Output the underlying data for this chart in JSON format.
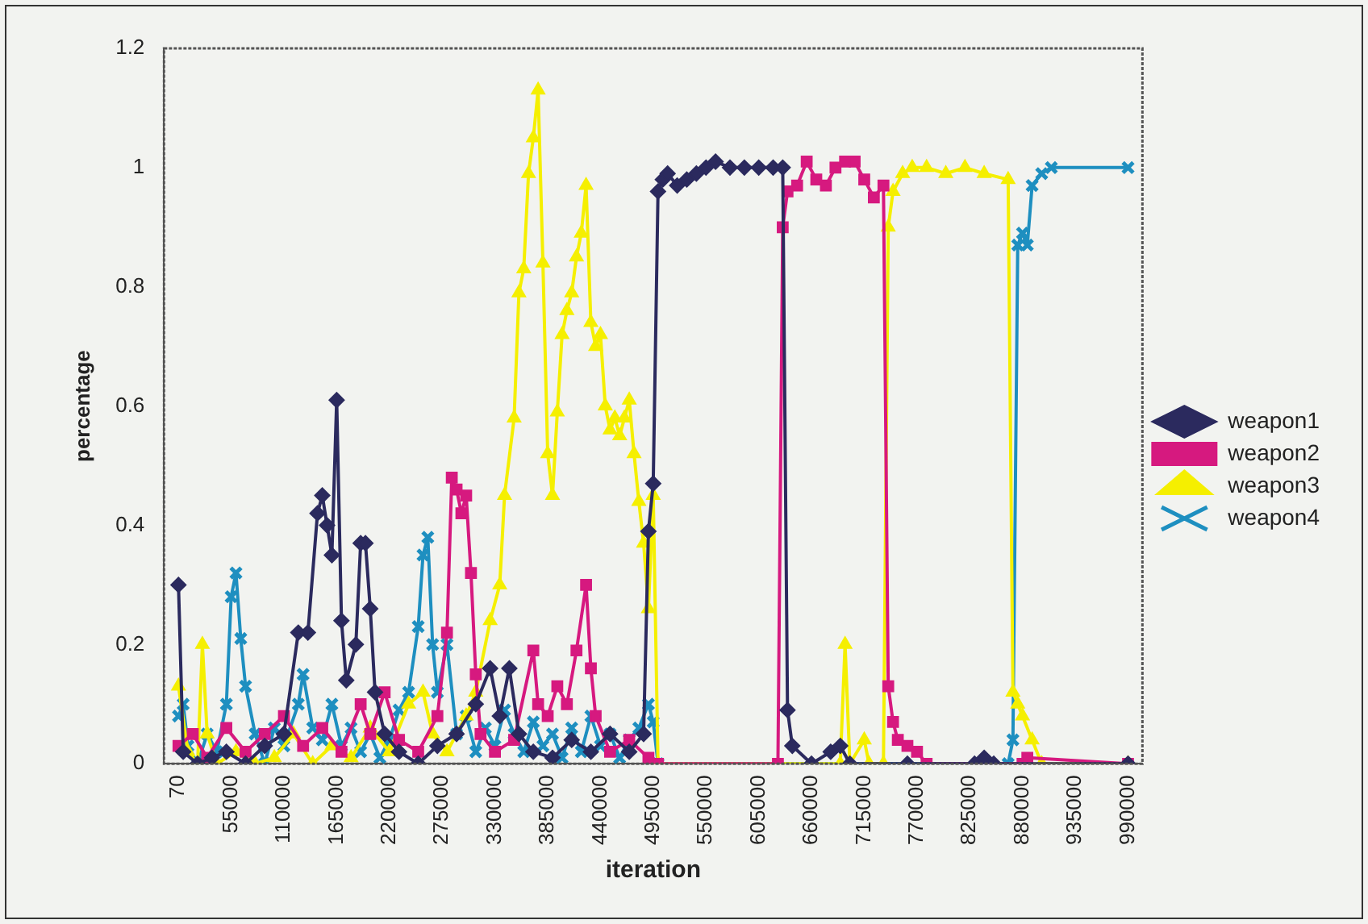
{
  "chart_data": {
    "type": "line",
    "xlabel": "iteration",
    "ylabel": "percentage",
    "xlim": [
      -15000,
      1005000
    ],
    "ylim": [
      0,
      1.2
    ],
    "xticks": [
      70,
      55000,
      110000,
      165000,
      220000,
      275000,
      330000,
      385000,
      440000,
      495000,
      550000,
      605000,
      660000,
      715000,
      770000,
      825000,
      880000,
      935000,
      990000
    ],
    "yticks": [
      0,
      0.2,
      0.4,
      0.6,
      0.8,
      1,
      1.2
    ],
    "grid": false,
    "legend": "right",
    "line_style": "solid",
    "series": [
      {
        "name": "weapon1",
        "color": "#2b2a5e",
        "marker": "diamond",
        "x": [
          70,
          5000,
          20000,
          35000,
          50000,
          70000,
          90000,
          110000,
          125000,
          135000,
          145000,
          150000,
          155000,
          160000,
          165000,
          170000,
          175000,
          185000,
          190000,
          195000,
          200000,
          205000,
          215000,
          230000,
          250000,
          270000,
          290000,
          310000,
          325000,
          335000,
          345000,
          355000,
          370000,
          390000,
          410000,
          430000,
          450000,
          470000,
          485000,
          490000,
          495000,
          500000,
          505000,
          510000,
          520000,
          530000,
          540000,
          550000,
          560000,
          575000,
          590000,
          605000,
          620000,
          630000,
          635000,
          640000,
          660000,
          680000,
          690000,
          700000,
          760000,
          830000,
          840000,
          850000,
          990000
        ],
        "values": [
          0.3,
          0.02,
          0.0,
          0.01,
          0.02,
          0.0,
          0.03,
          0.05,
          0.22,
          0.22,
          0.42,
          0.45,
          0.4,
          0.35,
          0.61,
          0.24,
          0.14,
          0.2,
          0.37,
          0.37,
          0.26,
          0.12,
          0.05,
          0.02,
          0.0,
          0.03,
          0.05,
          0.1,
          0.16,
          0.08,
          0.16,
          0.05,
          0.02,
          0.01,
          0.04,
          0.02,
          0.05,
          0.02,
          0.05,
          0.39,
          0.47,
          0.96,
          0.98,
          0.99,
          0.97,
          0.98,
          0.99,
          1.0,
          1.01,
          1.0,
          1.0,
          1.0,
          1.0,
          1.0,
          0.09,
          0.03,
          0.0,
          0.02,
          0.03,
          0.0,
          0.0,
          0.0,
          0.01,
          0.0,
          0.0
        ]
      },
      {
        "name": "weapon2",
        "color": "#d6197f",
        "marker": "square",
        "x": [
          70,
          15000,
          30000,
          50000,
          70000,
          90000,
          110000,
          130000,
          150000,
          170000,
          190000,
          200000,
          215000,
          230000,
          250000,
          270000,
          280000,
          285000,
          290000,
          295000,
          300000,
          305000,
          310000,
          315000,
          330000,
          350000,
          370000,
          375000,
          385000,
          395000,
          405000,
          415000,
          425000,
          430000,
          435000,
          450000,
          470000,
          490000,
          500000,
          625000,
          630000,
          635000,
          645000,
          655000,
          665000,
          675000,
          685000,
          695000,
          705000,
          715000,
          725000,
          735000,
          740000,
          745000,
          750000,
          760000,
          770000,
          780000,
          880000,
          885000,
          990000
        ],
        "values": [
          0.03,
          0.05,
          0.01,
          0.06,
          0.02,
          0.05,
          0.08,
          0.03,
          0.06,
          0.02,
          0.1,
          0.05,
          0.12,
          0.04,
          0.02,
          0.08,
          0.22,
          0.48,
          0.46,
          0.42,
          0.45,
          0.32,
          0.15,
          0.05,
          0.02,
          0.04,
          0.19,
          0.1,
          0.08,
          0.13,
          0.1,
          0.19,
          0.3,
          0.16,
          0.08,
          0.02,
          0.04,
          0.01,
          0.0,
          0.0,
          0.9,
          0.96,
          0.97,
          1.01,
          0.98,
          0.97,
          1.0,
          1.01,
          1.01,
          0.98,
          0.95,
          0.97,
          0.13,
          0.07,
          0.04,
          0.03,
          0.02,
          0.0,
          0.0,
          0.01,
          0.0
        ]
      },
      {
        "name": "weapon3",
        "color": "#f5ef00",
        "marker": "triangle",
        "x": [
          70,
          10000,
          20000,
          25000,
          30000,
          40000,
          60000,
          80000,
          100000,
          120000,
          140000,
          160000,
          180000,
          200000,
          220000,
          240000,
          255000,
          265000,
          280000,
          300000,
          310000,
          325000,
          335000,
          340000,
          350000,
          355000,
          360000,
          365000,
          370000,
          375000,
          380000,
          385000,
          390000,
          395000,
          400000,
          405000,
          410000,
          415000,
          420000,
          425000,
          430000,
          435000,
          440000,
          445000,
          450000,
          455000,
          460000,
          465000,
          470000,
          475000,
          480000,
          485000,
          490000,
          495000,
          500000,
          690000,
          695000,
          700000,
          715000,
          720000,
          735000,
          740000,
          745000,
          755000,
          765000,
          780000,
          800000,
          820000,
          840000,
          865000,
          870000,
          875000,
          880000,
          890000,
          900000,
          990000
        ],
        "values": [
          0.13,
          0.02,
          0.0,
          0.2,
          0.05,
          0.0,
          0.02,
          0.0,
          0.01,
          0.05,
          0.0,
          0.03,
          0.01,
          0.06,
          0.02,
          0.1,
          0.12,
          0.05,
          0.02,
          0.08,
          0.12,
          0.24,
          0.3,
          0.45,
          0.58,
          0.79,
          0.83,
          0.99,
          1.05,
          1.13,
          0.84,
          0.52,
          0.45,
          0.59,
          0.72,
          0.76,
          0.79,
          0.85,
          0.89,
          0.97,
          0.74,
          0.7,
          0.72,
          0.6,
          0.56,
          0.58,
          0.55,
          0.58,
          0.61,
          0.52,
          0.44,
          0.37,
          0.26,
          0.45,
          0.0,
          0.0,
          0.2,
          0.0,
          0.04,
          0.0,
          0.0,
          0.9,
          0.96,
          0.99,
          1.0,
          1.0,
          0.99,
          1.0,
          0.99,
          0.98,
          0.12,
          0.1,
          0.08,
          0.04,
          0.0,
          0.0
        ]
      },
      {
        "name": "weapon4",
        "color": "#1e8fc0",
        "marker": "cross",
        "x": [
          70,
          5000,
          10000,
          20000,
          30000,
          40000,
          50000,
          55000,
          60000,
          65000,
          70000,
          80000,
          90000,
          100000,
          110000,
          125000,
          130000,
          140000,
          150000,
          160000,
          170000,
          180000,
          190000,
          200000,
          210000,
          220000,
          230000,
          240000,
          250000,
          255000,
          260000,
          265000,
          270000,
          280000,
          290000,
          300000,
          310000,
          320000,
          330000,
          340000,
          350000,
          360000,
          370000,
          380000,
          390000,
          400000,
          410000,
          420000,
          430000,
          440000,
          450000,
          460000,
          470000,
          480000,
          490000,
          495000,
          500000,
          865000,
          870000,
          875000,
          880000,
          885000,
          890000,
          900000,
          910000,
          990000
        ],
        "values": [
          0.08,
          0.1,
          0.03,
          0.0,
          0.05,
          0.02,
          0.1,
          0.28,
          0.32,
          0.21,
          0.13,
          0.05,
          0.0,
          0.06,
          0.03,
          0.1,
          0.15,
          0.06,
          0.04,
          0.1,
          0.03,
          0.06,
          0.02,
          0.05,
          0.01,
          0.04,
          0.09,
          0.12,
          0.23,
          0.35,
          0.38,
          0.2,
          0.12,
          0.2,
          0.05,
          0.08,
          0.02,
          0.06,
          0.03,
          0.09,
          0.05,
          0.02,
          0.07,
          0.03,
          0.05,
          0.01,
          0.06,
          0.02,
          0.08,
          0.03,
          0.05,
          0.01,
          0.04,
          0.06,
          0.1,
          0.07,
          0.0,
          0.0,
          0.04,
          0.87,
          0.89,
          0.87,
          0.97,
          0.99,
          1.0,
          1.0
        ]
      }
    ]
  }
}
